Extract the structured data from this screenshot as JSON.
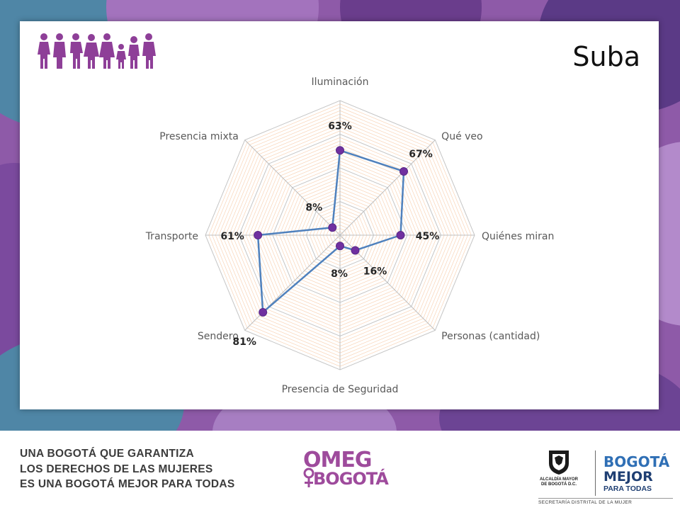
{
  "slide": {
    "title": "Suba",
    "slogan_lines": [
      "UNA BOGOTÁ QUE GARANTIZA",
      "LOS DERECHOS DE LAS MUJERES",
      "ES UNA BOGOTÁ MEJOR PARA TODAS"
    ],
    "omeg_logo": {
      "line1": "OMEG",
      "line2": "BOGOTÁ"
    },
    "alcaldia_logo": {
      "line1": "ALCALDÍA MAYOR",
      "line2": "DE BOGOTÁ D.C."
    },
    "mejor_logo": {
      "line1": "BOGOTÁ",
      "line2": "MEJOR",
      "line3": "PARA TODAS"
    },
    "secretaria_text": "SECRETARÍA DISTRITAL DE LA MUJER",
    "icon_names": [
      "women-group-icon",
      "woman-figure-icon",
      "city-crest-icon"
    ]
  },
  "colors": {
    "background_purple": "#8e5aa8",
    "series_line": "#4f81bd",
    "marker": "#7030a0",
    "grid_orange": "#f7c59f",
    "grid_gray": "#bfbfbf",
    "brand_purple": "#9e4b9c",
    "brand_blue": "#2f6fb5"
  },
  "chart_data": {
    "type": "radar",
    "categories": [
      "Iluminación",
      "Qué veo",
      "Quiénes miran",
      "Personas (cantidad)",
      "Presencia de Seguridad",
      "Sendero",
      "Transporte",
      "Presencia mixta"
    ],
    "series": [
      {
        "values": [
          63,
          67,
          45,
          16,
          8,
          81,
          61,
          8
        ]
      }
    ],
    "data_labels": [
      "63%",
      "67%",
      "45%",
      "16%",
      "8%",
      "81%",
      "61%",
      "8%"
    ],
    "range": [
      0,
      100
    ],
    "grid": true,
    "legend": "none"
  }
}
